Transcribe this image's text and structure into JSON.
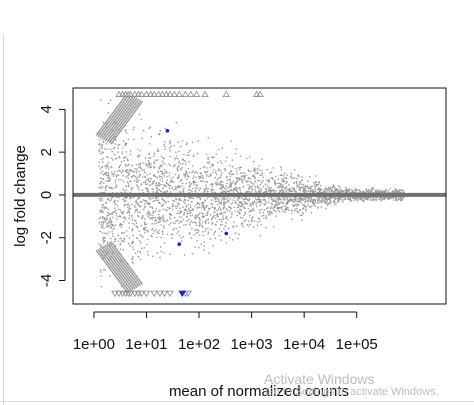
{
  "chart_data": {
    "type": "scatter",
    "title": "",
    "xlabel": "mean of normalized counts",
    "ylabel": "log fold change",
    "x_scale": "log10",
    "xlim": [
      0.4,
      5000000
    ],
    "ylim": [
      -5.1,
      5.0
    ],
    "x_ticks": [
      1,
      10,
      100,
      1000,
      10000,
      100000
    ],
    "x_tick_labels": [
      "1e+00",
      "1e+01",
      "1e+02",
      "1e+03",
      "1e+04",
      "1e+05"
    ],
    "y_ticks": [
      -4,
      -2,
      0,
      2,
      4
    ],
    "y_tick_labels": [
      "-4",
      "-2",
      "0",
      "2",
      "4"
    ],
    "grid": false,
    "reference_line_y": 0,
    "point_color": "#9a9a9a",
    "highlight_color": "#1f1fd6",
    "series": [
      {
        "marker": "filled-circle",
        "x": [
          1.2,
          1.8,
          2.5,
          3.2,
          4.1,
          5.5,
          7.0,
          9.0,
          12,
          15,
          20,
          28,
          40,
          55,
          80,
          120,
          180,
          260,
          400,
          600,
          900,
          1400,
          2200,
          3500,
          5500,
          9000,
          15000,
          25000,
          45000,
          90000,
          200000
        ],
        "y": [
          2.9,
          -2.7,
          3.4,
          -3.1,
          2.4,
          -2.2,
          1.8,
          -1.6,
          1.3,
          -1.2,
          1.0,
          -0.9,
          0.8,
          -0.7,
          0.6,
          -0.5,
          0.5,
          -0.4,
          0.4,
          -0.35,
          0.3,
          -0.3,
          0.25,
          -0.2,
          0.2,
          -0.18,
          0.15,
          -0.12,
          0.1,
          -0.08,
          0.05
        ]
      },
      {
        "marker": "up-triangle",
        "x": [
          3,
          3.5,
          4,
          4.5,
          5,
          6,
          7,
          8,
          10,
          12,
          14,
          17,
          20,
          24,
          28,
          34,
          42,
          55,
          70,
          90,
          130,
          330,
          1250,
          1450
        ],
        "y": [
          4.7,
          4.7,
          4.7,
          4.7,
          4.7,
          4.7,
          4.7,
          4.7,
          4.7,
          4.7,
          4.7,
          4.7,
          4.7,
          4.7,
          4.7,
          4.7,
          4.7,
          4.7,
          4.7,
          4.7,
          4.7,
          4.7,
          4.7,
          4.7
        ]
      },
      {
        "marker": "down-triangle",
        "x": [
          2.5,
          3,
          3.5,
          4,
          4.5,
          5,
          6,
          7,
          8,
          10,
          14,
          18,
          22,
          28,
          48,
          55,
          62
        ],
        "y": [
          -4.6,
          -4.6,
          -4.6,
          -4.6,
          -4.6,
          -4.6,
          -4.6,
          -4.6,
          -4.6,
          -4.6,
          -4.6,
          -4.6,
          -4.6,
          -4.6,
          -4.6,
          -4.6,
          -4.6
        ]
      },
      {
        "marker": "highlighted-points",
        "x": [
          25,
          42,
          330
        ],
        "y": [
          3.0,
          -2.3,
          -1.8
        ]
      },
      {
        "marker": "highlighted-down-triangle",
        "x": [
          48
        ],
        "y": [
          -4.6
        ]
      }
    ]
  },
  "watermark": {
    "title": "Activate Windows",
    "subtitle": "Go to Settings to activate Windows."
  }
}
